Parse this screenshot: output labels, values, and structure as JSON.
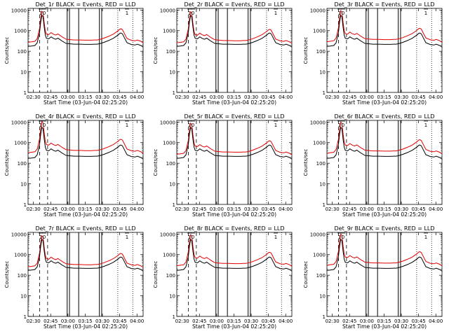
{
  "chart_data": {
    "type": "line",
    "rows": 3,
    "cols": 3,
    "panels": [
      {
        "title": "Det_1r  BLACK = Events, RED = LLD",
        "lld_scale": 1.6
      },
      {
        "title": "Det_2r  BLACK = Events, RED = LLD",
        "lld_scale": 1.5
      },
      {
        "title": "Det_3r  BLACK = Events, RED = LLD",
        "lld_scale": 1.7
      },
      {
        "title": "Det_4r  BLACK = Events, RED = LLD",
        "lld_scale": 1.9
      },
      {
        "title": "Det_5r  BLACK = Events, RED = LLD",
        "lld_scale": 1.6
      },
      {
        "title": "Det_6r  BLACK = Events, RED = LLD",
        "lld_scale": 1.8
      },
      {
        "title": "Det_7r  BLACK = Events, RED = LLD",
        "lld_scale": 1.5
      },
      {
        "title": "Det_8r  BLACK = Events, RED = LLD",
        "lld_scale": 1.7
      },
      {
        "title": "Det_9r  BLACK = Events, RED = LLD",
        "lld_scale": 1.8
      }
    ],
    "xlabel": "Start Time (03-Jun-04 02:25:20)",
    "ylabel": "Counts/sec",
    "x_range_minutes": [
      0,
      100
    ],
    "x_ticks": [
      {
        "t": 4.67,
        "label": "02:30"
      },
      {
        "t": 19.67,
        "label": "02:45"
      },
      {
        "t": 34.67,
        "label": "03:00"
      },
      {
        "t": 49.67,
        "label": "03:15"
      },
      {
        "t": 64.67,
        "label": "03:30"
      },
      {
        "t": 79.67,
        "label": "03:45"
      },
      {
        "t": 94.67,
        "label": "04:00"
      }
    ],
    "y_log": true,
    "ylim": [
      1,
      12000
    ],
    "y_ticks": [
      {
        "v": 1,
        "label": "1"
      },
      {
        "v": 10,
        "label": "10"
      },
      {
        "v": 100,
        "label": "100"
      },
      {
        "v": 1000,
        "label": "1000"
      },
      {
        "v": 10000,
        "label": "10000"
      }
    ],
    "series": [
      {
        "name": "Events",
        "color": "#000000",
        "x": [
          0,
          3,
          6,
          8,
          10,
          11,
          12,
          13,
          14,
          15,
          16,
          18,
          20,
          22,
          24,
          26,
          28,
          30,
          32,
          33,
          36,
          40,
          45,
          50,
          55,
          58,
          60,
          62,
          64,
          66,
          70,
          74,
          78,
          80,
          81,
          82,
          84,
          86,
          90,
          93,
          95,
          98,
          100
        ],
        "y": [
          170,
          180,
          190,
          260,
          800,
          2500,
          5500,
          4800,
          1500,
          600,
          420,
          400,
          500,
          420,
          380,
          430,
          360,
          300,
          260,
          240,
          230,
          220,
          220,
          215,
          215,
          220,
          220,
          230,
          250,
          270,
          330,
          420,
          600,
          750,
          760,
          700,
          420,
          260,
          210,
          200,
          220,
          190,
          160
        ]
      }
    ],
    "vertical_lines": [
      {
        "t": 10,
        "style": "dashed"
      },
      {
        "t": 17,
        "style": "dashed"
      },
      {
        "t": 34,
        "style": "solid"
      },
      {
        "t": 36,
        "style": "solid"
      },
      {
        "t": 44,
        "style": "solid"
      },
      {
        "t": 62,
        "style": "solid"
      },
      {
        "t": 64,
        "style": "solid"
      },
      {
        "t": 78,
        "style": "dotted"
      },
      {
        "t": 91,
        "style": "dotted"
      }
    ],
    "attenuator_markers": [
      {
        "t": 11,
        "label": "1"
      },
      {
        "t": 14,
        "label": "0"
      },
      {
        "t": 86,
        "label": "1"
      }
    ]
  }
}
